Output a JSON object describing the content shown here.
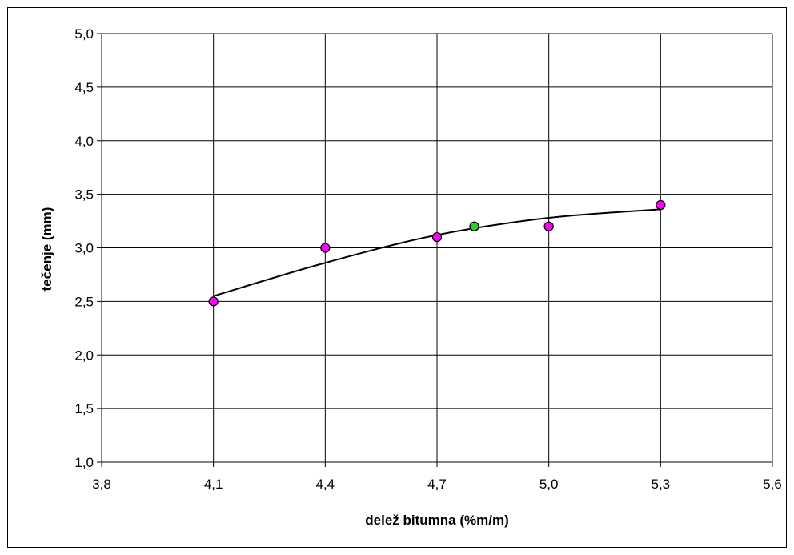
{
  "chart_data": {
    "type": "scatter",
    "title": "",
    "xlabel": "delež bitumna (%m/m)",
    "ylabel": "tečenje (mm)",
    "xlim": [
      3.8,
      5.6
    ],
    "ylim": [
      1.0,
      5.0
    ],
    "x_ticks": [
      "3,8",
      "4,1",
      "4,4",
      "4,7",
      "5,0",
      "5,3",
      "5,6"
    ],
    "y_ticks": [
      "1,0",
      "1,5",
      "2,0",
      "2,5",
      "3,0",
      "3,5",
      "4,0",
      "4,5",
      "5,0"
    ],
    "x_tick_values": [
      3.8,
      4.1,
      4.4,
      4.7,
      5.0,
      5.3,
      5.6
    ],
    "y_tick_values": [
      1.0,
      1.5,
      2.0,
      2.5,
      3.0,
      3.5,
      4.0,
      4.5,
      5.0
    ],
    "grid": true,
    "legend": "none",
    "series": [
      {
        "color": "#ff00ff",
        "marker": "circle",
        "points": [
          {
            "x": 4.1,
            "y": 2.5
          },
          {
            "x": 4.4,
            "y": 3.0
          },
          {
            "x": 4.7,
            "y": 3.1
          },
          {
            "x": 5.0,
            "y": 3.2
          },
          {
            "x": 5.3,
            "y": 3.4
          }
        ]
      },
      {
        "color": "#33cc33",
        "marker": "circle",
        "points": [
          {
            "x": 4.8,
            "y": 3.2
          }
        ]
      }
    ],
    "trendline": {
      "type": "polynomial-2",
      "color": "#000000",
      "x_range": [
        4.1,
        5.3
      ],
      "points": [
        {
          "x": 4.1,
          "y": 2.55
        },
        {
          "x": 4.4,
          "y": 2.86
        },
        {
          "x": 4.7,
          "y": 3.12
        },
        {
          "x": 5.0,
          "y": 3.28
        },
        {
          "x": 5.3,
          "y": 3.36
        }
      ]
    }
  }
}
